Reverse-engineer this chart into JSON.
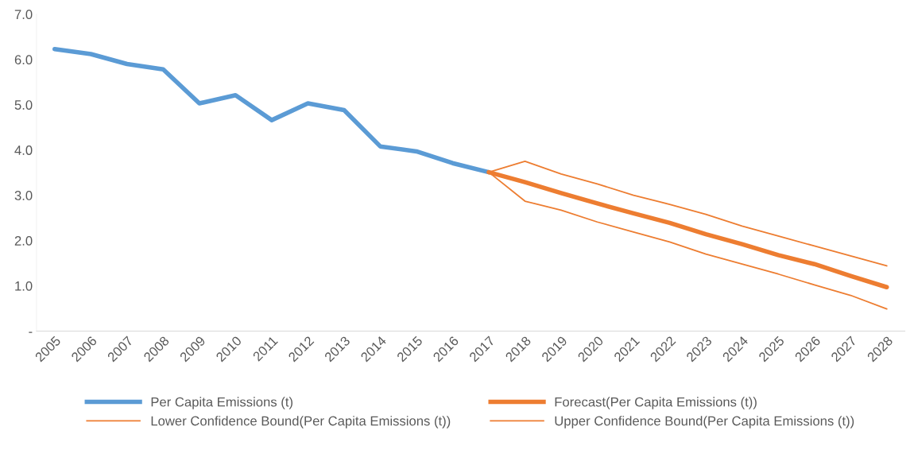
{
  "chart_data": {
    "type": "line",
    "categories": [
      "2005",
      "2006",
      "2007",
      "2008",
      "2009",
      "2010",
      "2011",
      "2012",
      "2013",
      "2014",
      "2015",
      "2016",
      "2017",
      "2018",
      "2019",
      "2020",
      "2021",
      "2022",
      "2023",
      "2024",
      "2025",
      "2026",
      "2027",
      "2028"
    ],
    "series": [
      {
        "name": "Per Capita Emissions (t)",
        "color": "#5b9bd5",
        "values": [
          6.23,
          6.12,
          5.9,
          5.78,
          5.03,
          5.21,
          4.66,
          5.03,
          4.88,
          4.08,
          3.97,
          3.71,
          3.51,
          null,
          null,
          null,
          null,
          null,
          null,
          null,
          null,
          null,
          null,
          null
        ]
      },
      {
        "name": "Forecast(Per Capita Emissions (t))",
        "color": "#ed7d31",
        "values": [
          null,
          null,
          null,
          null,
          null,
          null,
          null,
          null,
          null,
          null,
          null,
          null,
          3.51,
          3.29,
          3.05,
          2.82,
          2.6,
          2.39,
          2.14,
          1.92,
          1.68,
          1.48,
          1.22,
          0.97
        ]
      },
      {
        "name": "Lower Confidence Bound(Per Capita Emissions (t))",
        "color": "#ed7d31",
        "values": [
          null,
          null,
          null,
          null,
          null,
          null,
          null,
          null,
          null,
          null,
          null,
          null,
          3.51,
          2.87,
          2.67,
          2.41,
          2.19,
          1.97,
          1.7,
          1.48,
          1.26,
          1.02,
          0.79,
          0.49
        ]
      },
      {
        "name": "Upper Confidence Bound(Per Capita Emissions (t))",
        "color": "#ed7d31",
        "values": [
          null,
          null,
          null,
          null,
          null,
          null,
          null,
          null,
          null,
          null,
          null,
          null,
          3.51,
          3.75,
          3.47,
          3.25,
          3.0,
          2.8,
          2.58,
          2.32,
          2.1,
          1.88,
          1.66,
          1.44
        ]
      }
    ],
    "ylim": [
      0,
      7
    ],
    "yticks": [
      {
        "value": 0,
        "label": "-"
      },
      {
        "value": 1,
        "label": "1.0"
      },
      {
        "value": 2,
        "label": "2.0"
      },
      {
        "value": 3,
        "label": "3.0"
      },
      {
        "value": 4,
        "label": "4.0"
      },
      {
        "value": 5,
        "label": "5.0"
      },
      {
        "value": 6,
        "label": "6.0"
      },
      {
        "value": 7,
        "label": "7.0"
      }
    ],
    "grid": false,
    "legend": "bottom",
    "marker": "none",
    "line_style": "solid"
  }
}
